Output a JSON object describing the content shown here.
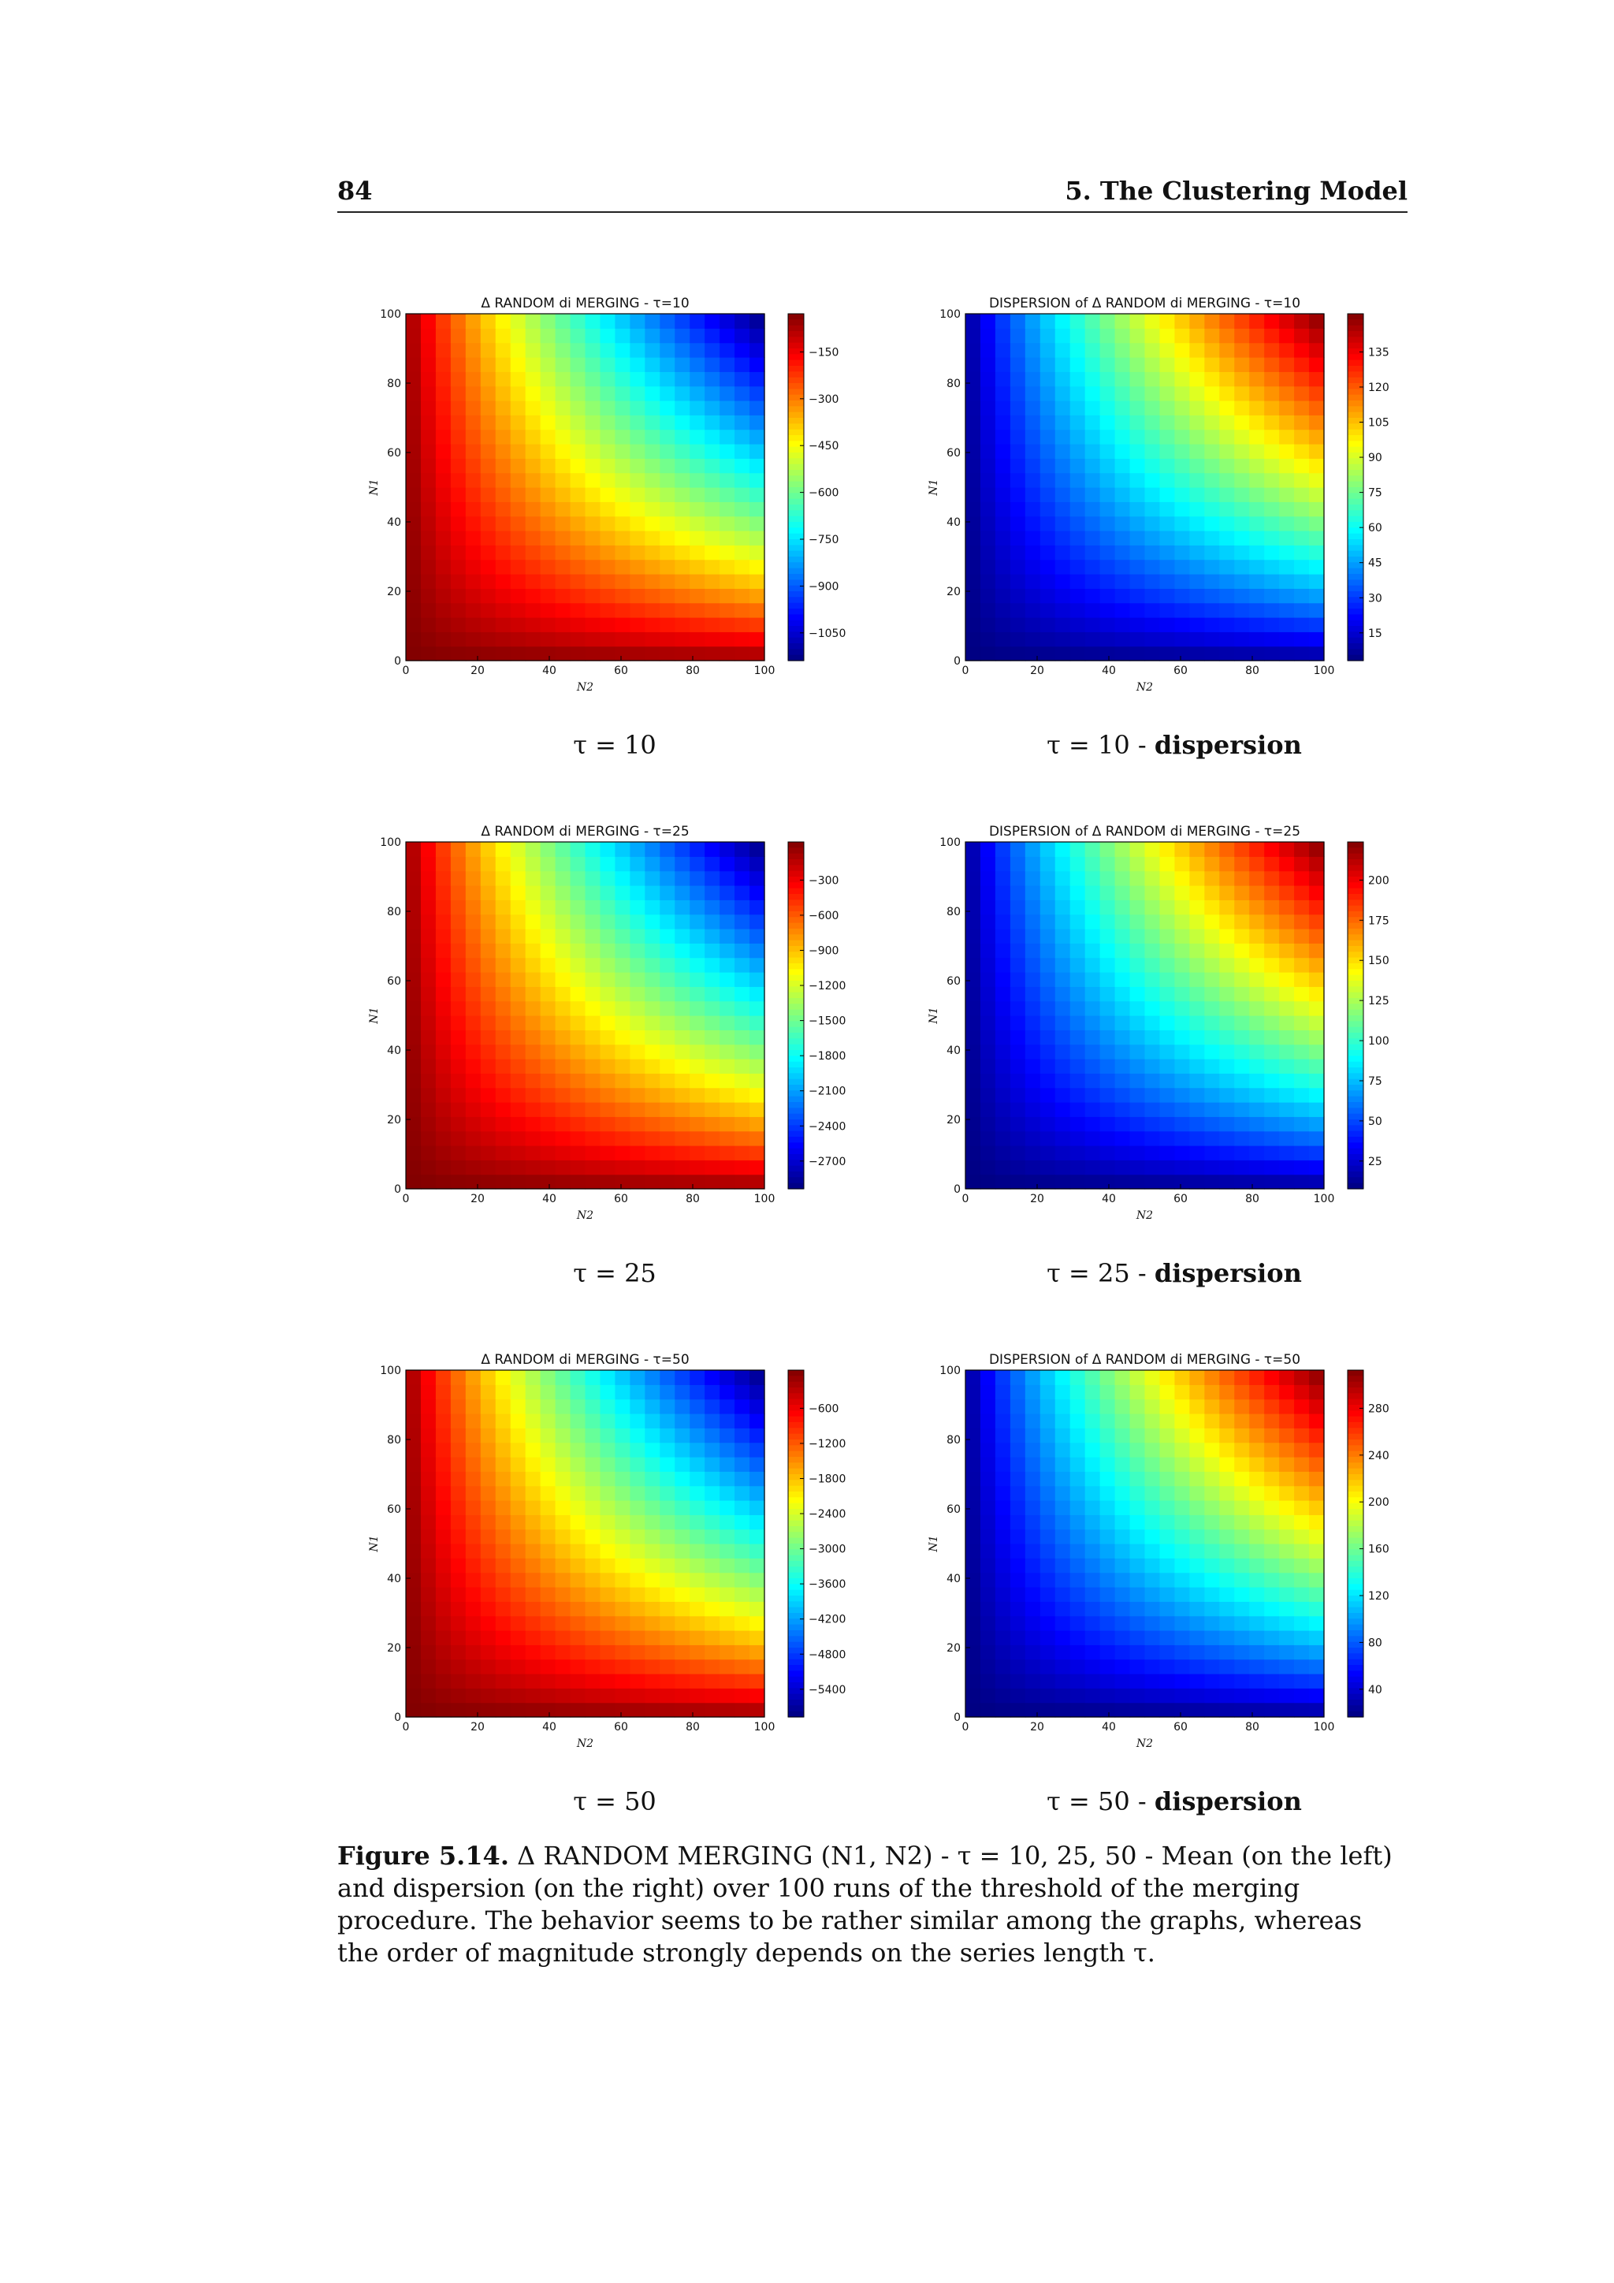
{
  "header": {
    "page_number": "84",
    "chapter_title": "5. The Clustering Model"
  },
  "panels": [
    {
      "title": "Δ RANDOM di MERGING - τ=10",
      "subcaption_main": "τ = 10",
      "subcaption_bold": "",
      "xlabel": "N2",
      "ylabel": "N1",
      "x_ticks": [
        "0",
        "20",
        "40",
        "60",
        "80",
        "100"
      ],
      "y_ticks": [
        "0",
        "20",
        "40",
        "60",
        "80",
        "100"
      ],
      "colorbar_ticks": [
        "−150",
        "−300",
        "−450",
        "−600",
        "−750",
        "−900",
        "−1050"
      ],
      "colormap": "jet-reversed"
    },
    {
      "title": "DISPERSION of Δ RANDOM di MERGING - τ=10",
      "subcaption_main": "τ = 10 - ",
      "subcaption_bold": "dispersion",
      "xlabel": "N2",
      "ylabel": "N1",
      "x_ticks": [
        "0",
        "20",
        "40",
        "60",
        "80",
        "100"
      ],
      "y_ticks": [
        "0",
        "20",
        "40",
        "60",
        "80",
        "100"
      ],
      "colorbar_ticks": [
        "135",
        "120",
        "105",
        "90",
        "75",
        "60",
        "45",
        "30",
        "15"
      ],
      "colormap": "jet"
    },
    {
      "title": "Δ RANDOM di MERGING - τ=25",
      "subcaption_main": "τ = 25",
      "subcaption_bold": "",
      "xlabel": "N2",
      "ylabel": "N1",
      "x_ticks": [
        "0",
        "20",
        "40",
        "60",
        "80",
        "100"
      ],
      "y_ticks": [
        "0",
        "20",
        "40",
        "60",
        "80",
        "100"
      ],
      "colorbar_ticks": [
        "−300",
        "−600",
        "−900",
        "−1200",
        "−1500",
        "−1800",
        "−2100",
        "−2400",
        "−2700"
      ],
      "colormap": "jet-reversed"
    },
    {
      "title": "DISPERSION of Δ RANDOM di MERGING - τ=25",
      "subcaption_main": "τ = 25 - ",
      "subcaption_bold": "dispersion",
      "xlabel": "N2",
      "ylabel": "N1",
      "x_ticks": [
        "0",
        "20",
        "40",
        "60",
        "80",
        "100"
      ],
      "y_ticks": [
        "0",
        "20",
        "40",
        "60",
        "80",
        "100"
      ],
      "colorbar_ticks": [
        "200",
        "175",
        "150",
        "125",
        "100",
        "75",
        "50",
        "25"
      ],
      "colormap": "jet"
    },
    {
      "title": "Δ RANDOM di MERGING - τ=50",
      "subcaption_main": "τ = 50",
      "subcaption_bold": "",
      "xlabel": "N2",
      "ylabel": "N1",
      "x_ticks": [
        "0",
        "20",
        "40",
        "60",
        "80",
        "100"
      ],
      "y_ticks": [
        "0",
        "20",
        "40",
        "60",
        "80",
        "100"
      ],
      "colorbar_ticks": [
        "−600",
        "−1200",
        "−1800",
        "−2400",
        "−3000",
        "−3600",
        "−4200",
        "−4800",
        "−5400"
      ],
      "colormap": "jet-reversed"
    },
    {
      "title": "DISPERSION of Δ RANDOM di MERGING - τ=50",
      "subcaption_main": "τ = 50 - ",
      "subcaption_bold": "dispersion",
      "xlabel": "N2",
      "ylabel": "N1",
      "x_ticks": [
        "0",
        "20",
        "40",
        "60",
        "80",
        "100"
      ],
      "y_ticks": [
        "0",
        "20",
        "40",
        "60",
        "80",
        "100"
      ],
      "colorbar_ticks": [
        "280",
        "240",
        "200",
        "160",
        "120",
        "80",
        "40"
      ],
      "colormap": "jet"
    }
  ],
  "caption": {
    "label": "Figure 5.14.",
    "text": "Δ RANDOM MERGING (N1, N2) - τ = 10, 25, 50 - Mean (on the left) and dispersion (on the right) over 100 runs of the threshold of the merging procedure. The behavior seems to be rather similar among the graphs, whereas the order of magnitude strongly depends on the series length τ."
  },
  "chart_data": [
    {
      "type": "heatmap",
      "title": "Δ RANDOM di MERGING - τ=10",
      "xlabel": "N2",
      "ylabel": "N1",
      "xlim": [
        0,
        100
      ],
      "ylim": [
        0,
        100
      ],
      "colorbar_range": [
        -1150,
        0
      ],
      "colormap": "jet",
      "description_values": "low (blue) at high N1,N2; high (red) near axes"
    },
    {
      "type": "heatmap",
      "title": "DISPERSION of Δ RANDOM di MERGING - τ=10",
      "xlabel": "N2",
      "ylabel": "N1",
      "xlim": [
        0,
        100
      ],
      "ylim": [
        0,
        100
      ],
      "colorbar_range": [
        0,
        145
      ],
      "colormap": "jet"
    },
    {
      "type": "heatmap",
      "title": "Δ RANDOM di MERGING - τ=25",
      "xlabel": "N2",
      "ylabel": "N1",
      "xlim": [
        0,
        100
      ],
      "ylim": [
        0,
        100
      ],
      "colorbar_range": [
        -2800,
        0
      ],
      "colormap": "jet"
    },
    {
      "type": "heatmap",
      "title": "DISPERSION of Δ RANDOM di MERGING - τ=25",
      "xlabel": "N2",
      "ylabel": "N1",
      "xlim": [
        0,
        100
      ],
      "ylim": [
        0,
        100
      ],
      "colorbar_range": [
        0,
        215
      ],
      "colormap": "jet"
    },
    {
      "type": "heatmap",
      "title": "Δ RANDOM di MERGING - τ=50",
      "xlabel": "N2",
      "ylabel": "N1",
      "xlim": [
        0,
        100
      ],
      "ylim": [
        0,
        100
      ],
      "colorbar_range": [
        -5700,
        0
      ],
      "colormap": "jet"
    },
    {
      "type": "heatmap",
      "title": "DISPERSION of Δ RANDOM di MERGING - τ=50",
      "xlabel": "N2",
      "ylabel": "N1",
      "xlim": [
        0,
        100
      ],
      "ylim": [
        0,
        100
      ],
      "colorbar_range": [
        0,
        300
      ],
      "colormap": "jet"
    }
  ]
}
